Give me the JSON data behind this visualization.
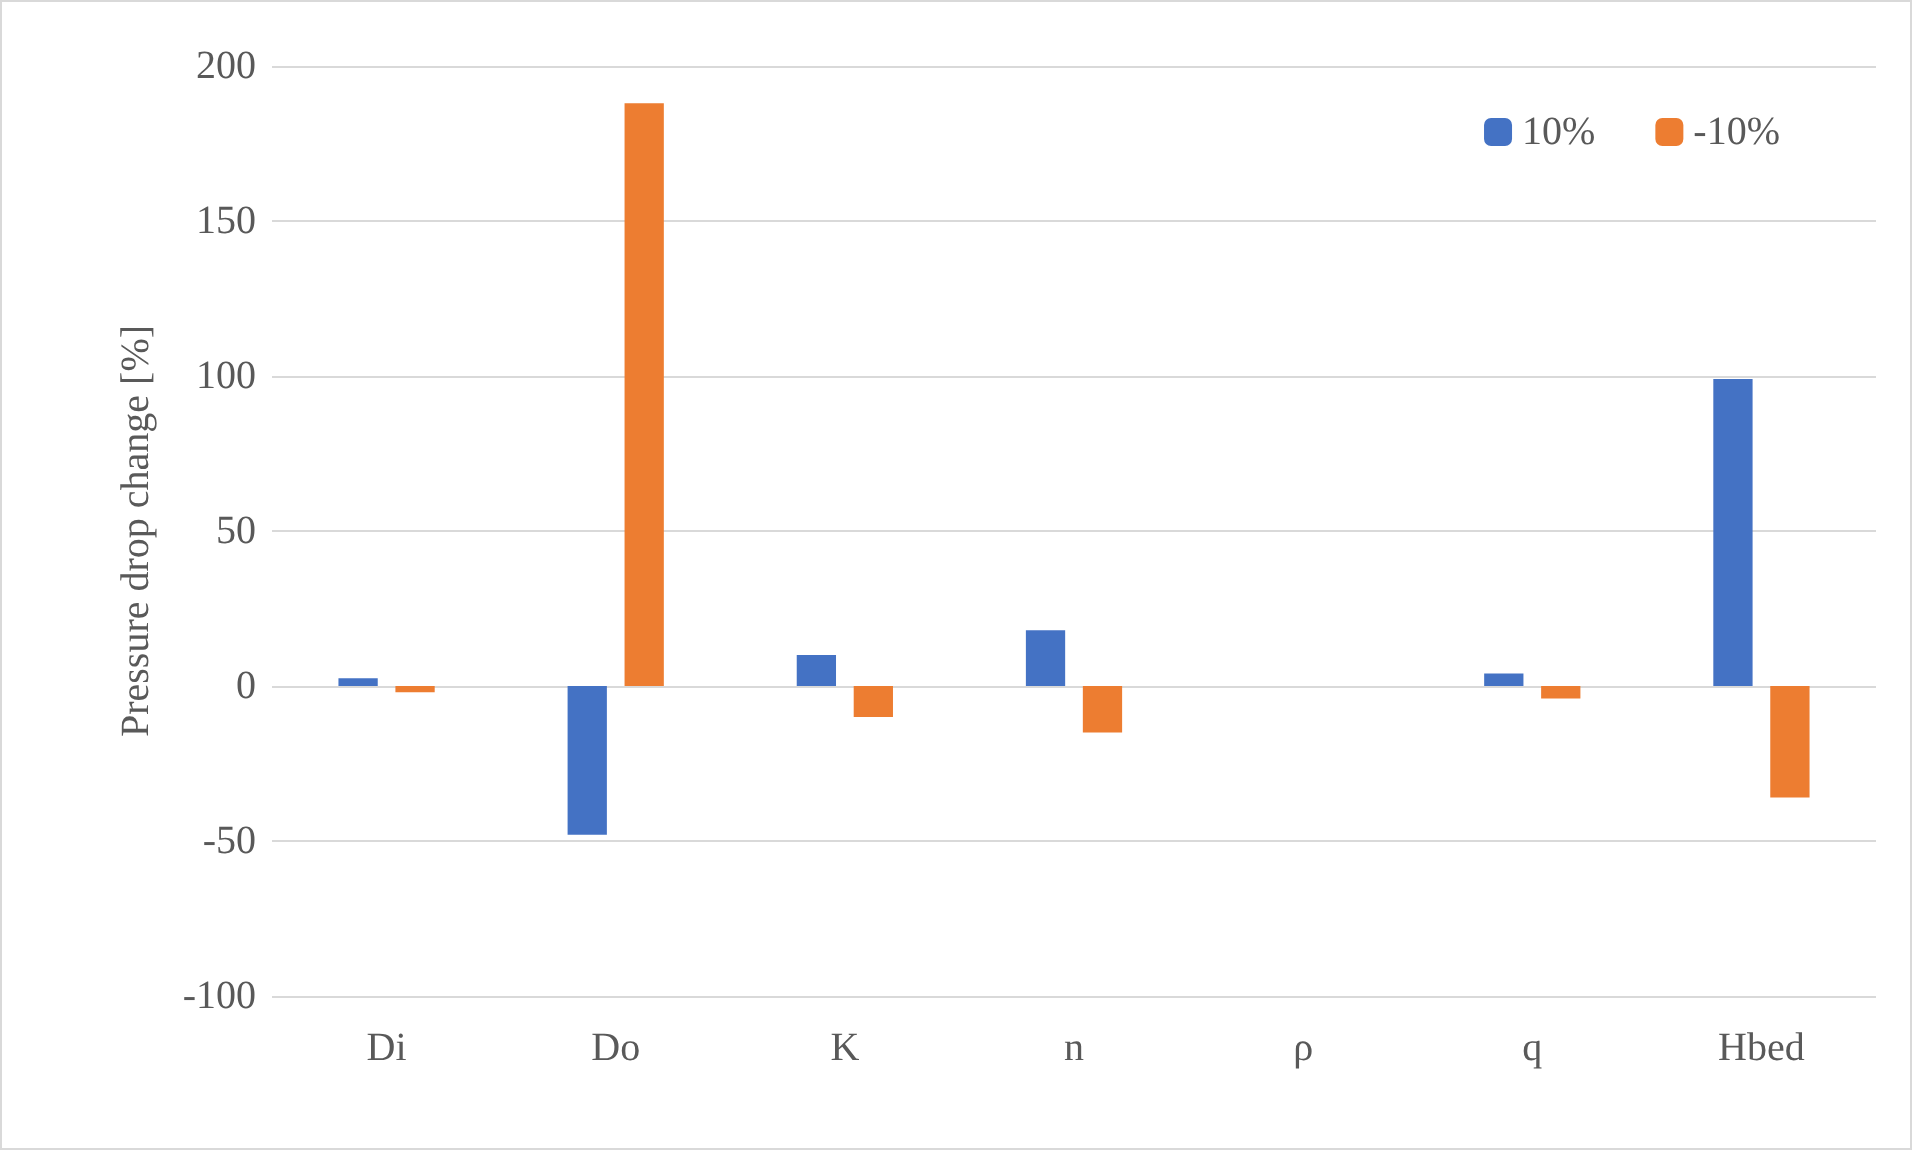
{
  "chart_data": {
    "type": "bar",
    "ylabel": "Pressure drop change [%]",
    "categories": [
      "Di",
      "Do",
      "K",
      "n",
      "ρ",
      "q",
      "Hbed"
    ],
    "series": [
      {
        "name": "10%",
        "color": "#4472c4",
        "values": [
          2.5,
          -48,
          10,
          18,
          0,
          4,
          99
        ]
      },
      {
        "name": "-10%",
        "color": "#ed7d31",
        "values": [
          -2,
          188,
          -10,
          -15,
          0,
          -4,
          -36
        ]
      }
    ],
    "ylim": [
      -100,
      200
    ],
    "yticks": [
      -100,
      -50,
      0,
      50,
      100,
      150,
      200
    ],
    "grid": "y",
    "legend": "top right"
  }
}
